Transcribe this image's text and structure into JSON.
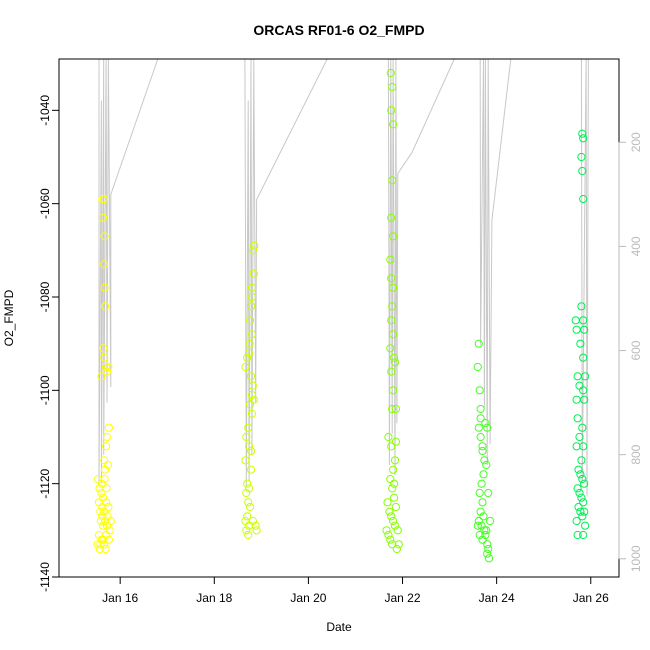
{
  "chart_data": {
    "type": "scatter",
    "title": "ORCAS RF01-6 O2_FMPD",
    "xlabel": "Date",
    "ylabel": "O2_FMPD",
    "x_unit": "day of January",
    "xlim": [
      14.7,
      26.6
    ],
    "ylim": [
      -1140,
      -1029
    ],
    "x_ticks": [
      16,
      18,
      20,
      22,
      24,
      26
    ],
    "x_tick_labels": [
      "Jan 16",
      "Jan 18",
      "Jan 20",
      "Jan 22",
      "Jan 24",
      "Jan 26"
    ],
    "y_ticks": [
      -1140,
      -1120,
      -1100,
      -1080,
      -1060,
      -1040
    ],
    "y_tick_labels": [
      "-1140",
      "-1120",
      "-1100",
      "-1080",
      "-1060",
      "-1040"
    ],
    "secondary_axis": {
      "side": "right",
      "color": "#bbbbbb",
      "ticks": [
        200,
        400,
        600,
        800,
        1000
      ],
      "tick_labels": [
        "200",
        "400",
        "600",
        "800",
        "1000"
      ],
      "lim": [
        40,
        1035
      ]
    },
    "grid": false,
    "legend": "none",
    "series": [
      {
        "color": "#ffff00",
        "x_range": [
          15.45,
          15.85
        ],
        "points": [
          [
            15.62,
            -1059
          ],
          [
            15.66,
            -1059
          ],
          [
            15.64,
            -1063
          ],
          [
            15.67,
            -1067
          ],
          [
            15.66,
            -1073
          ],
          [
            15.67,
            -1078
          ],
          [
            15.68,
            -1082
          ],
          [
            15.64,
            -1091
          ],
          [
            15.66,
            -1093
          ],
          [
            15.7,
            -1095
          ],
          [
            15.72,
            -1096
          ],
          [
            15.6,
            -1097
          ],
          [
            15.75,
            -1095
          ],
          [
            15.76,
            -1108
          ],
          [
            15.72,
            -1110
          ],
          [
            15.7,
            -1112
          ],
          [
            15.66,
            -1115
          ],
          [
            15.68,
            -1117
          ],
          [
            15.74,
            -1116
          ],
          [
            15.53,
            -1119
          ],
          [
            15.56,
            -1121
          ],
          [
            15.6,
            -1122
          ],
          [
            15.64,
            -1123
          ],
          [
            15.7,
            -1124
          ],
          [
            15.75,
            -1125
          ],
          [
            15.58,
            -1126
          ],
          [
            15.62,
            -1127
          ],
          [
            15.68,
            -1128
          ],
          [
            15.72,
            -1129
          ],
          [
            15.78,
            -1130
          ],
          [
            15.55,
            -1131
          ],
          [
            15.6,
            -1132
          ],
          [
            15.66,
            -1133
          ],
          [
            15.52,
            -1133
          ],
          [
            15.57,
            -1134
          ],
          [
            15.63,
            -1132
          ],
          [
            15.7,
            -1131
          ],
          [
            15.76,
            -1132
          ],
          [
            15.59,
            -1128
          ],
          [
            15.65,
            -1126
          ],
          [
            15.73,
            -1127
          ],
          [
            15.61,
            -1120
          ],
          [
            15.67,
            -1119
          ],
          [
            15.71,
            -1121
          ],
          [
            15.55,
            -1124
          ],
          [
            15.64,
            -1129
          ],
          [
            15.8,
            -1128
          ],
          [
            15.58,
            -1133
          ],
          [
            15.69,
            -1134
          ],
          [
            15.62,
            -1125
          ]
        ]
      },
      {
        "color": "#ccff00",
        "x_range": [
          18.6,
          18.95
        ],
        "points": [
          [
            18.85,
            -1069
          ],
          [
            18.82,
            -1070
          ],
          [
            18.84,
            -1075
          ],
          [
            18.8,
            -1078
          ],
          [
            18.78,
            -1082
          ],
          [
            18.76,
            -1085
          ],
          [
            18.8,
            -1088
          ],
          [
            18.75,
            -1090
          ],
          [
            18.7,
            -1093
          ],
          [
            18.66,
            -1095
          ],
          [
            18.78,
            -1097
          ],
          [
            18.82,
            -1099
          ],
          [
            18.8,
            -1101
          ],
          [
            18.76,
            -1103
          ],
          [
            18.8,
            -1105
          ],
          [
            18.72,
            -1108
          ],
          [
            18.68,
            -1110
          ],
          [
            18.74,
            -1112
          ],
          [
            18.66,
            -1115
          ],
          [
            18.78,
            -1117
          ],
          [
            18.7,
            -1120
          ],
          [
            18.74,
            -1121
          ],
          [
            18.68,
            -1122
          ],
          [
            18.72,
            -1124
          ],
          [
            18.76,
            -1125
          ],
          [
            18.7,
            -1127
          ],
          [
            18.66,
            -1128
          ],
          [
            18.74,
            -1129
          ],
          [
            18.68,
            -1130
          ],
          [
            18.72,
            -1131
          ],
          [
            18.88,
            -1129
          ],
          [
            18.9,
            -1130
          ],
          [
            18.82,
            -1128
          ],
          [
            18.78,
            -1113
          ],
          [
            18.84,
            -1102
          ],
          [
            18.74,
            -1092
          ],
          [
            18.8,
            -1080
          ]
        ]
      },
      {
        "color": "#88ff00",
        "x_range": [
          21.55,
          22.0
        ],
        "points": [
          [
            21.75,
            -1032
          ],
          [
            21.78,
            -1035
          ],
          [
            21.76,
            -1040
          ],
          [
            21.8,
            -1043
          ],
          [
            21.78,
            -1055
          ],
          [
            21.76,
            -1063
          ],
          [
            21.8,
            -1067
          ],
          [
            21.74,
            -1072
          ],
          [
            21.76,
            -1076
          ],
          [
            21.8,
            -1078
          ],
          [
            21.78,
            -1082
          ],
          [
            21.76,
            -1085
          ],
          [
            21.8,
            -1088
          ],
          [
            21.74,
            -1091
          ],
          [
            21.82,
            -1093
          ],
          [
            21.76,
            -1096
          ],
          [
            21.8,
            -1100
          ],
          [
            21.78,
            -1104
          ],
          [
            21.7,
            -1110
          ],
          [
            21.76,
            -1112
          ],
          [
            21.86,
            -1111
          ],
          [
            21.84,
            -1115
          ],
          [
            21.8,
            -1117
          ],
          [
            21.74,
            -1119
          ],
          [
            21.78,
            -1121
          ],
          [
            21.82,
            -1123
          ],
          [
            21.68,
            -1124
          ],
          [
            21.72,
            -1126
          ],
          [
            21.76,
            -1127
          ],
          [
            21.8,
            -1128
          ],
          [
            21.84,
            -1129
          ],
          [
            21.66,
            -1130
          ],
          [
            21.7,
            -1131
          ],
          [
            21.74,
            -1132
          ],
          [
            21.78,
            -1133
          ],
          [
            21.9,
            -1130
          ],
          [
            21.92,
            -1133
          ],
          [
            21.88,
            -1134
          ],
          [
            21.86,
            -1125
          ],
          [
            21.82,
            -1120
          ],
          [
            21.86,
            -1104
          ],
          [
            21.84,
            -1094
          ]
        ]
      },
      {
        "color": "#44ff22",
        "x_range": [
          23.55,
          24.0
        ],
        "points": [
          [
            23.62,
            -1090
          ],
          [
            23.6,
            -1095
          ],
          [
            23.64,
            -1100
          ],
          [
            23.66,
            -1104
          ],
          [
            23.62,
            -1108
          ],
          [
            23.66,
            -1110
          ],
          [
            23.7,
            -1113
          ],
          [
            23.74,
            -1115
          ],
          [
            23.76,
            -1107
          ],
          [
            23.8,
            -1108
          ],
          [
            23.72,
            -1118
          ],
          [
            23.68,
            -1120
          ],
          [
            23.64,
            -1122
          ],
          [
            23.7,
            -1124
          ],
          [
            23.66,
            -1126
          ],
          [
            23.72,
            -1127
          ],
          [
            23.62,
            -1128
          ],
          [
            23.68,
            -1129
          ],
          [
            23.74,
            -1130
          ],
          [
            23.78,
            -1130
          ],
          [
            23.64,
            -1131
          ],
          [
            23.7,
            -1132
          ],
          [
            23.76,
            -1131
          ],
          [
            23.8,
            -1133
          ],
          [
            23.82,
            -1134
          ],
          [
            23.84,
            -1136
          ],
          [
            23.8,
            -1135
          ],
          [
            23.6,
            -1129
          ],
          [
            23.86,
            -1128
          ],
          [
            23.82,
            -1122
          ],
          [
            23.78,
            -1116
          ],
          [
            23.7,
            -1112
          ],
          [
            23.66,
            -1106
          ]
        ]
      },
      {
        "color": "#00ee55",
        "x_range": [
          25.6,
          26.05
        ],
        "points": [
          [
            25.82,
            -1045
          ],
          [
            25.84,
            -1046
          ],
          [
            25.8,
            -1050
          ],
          [
            25.82,
            -1053
          ],
          [
            25.84,
            -1059
          ],
          [
            25.8,
            -1082
          ],
          [
            25.84,
            -1085
          ],
          [
            25.68,
            -1085
          ],
          [
            25.7,
            -1087
          ],
          [
            25.86,
            -1087
          ],
          [
            25.78,
            -1090
          ],
          [
            25.84,
            -1093
          ],
          [
            25.72,
            -1097
          ],
          [
            25.88,
            -1097
          ],
          [
            25.76,
            -1099
          ],
          [
            25.84,
            -1100
          ],
          [
            25.7,
            -1102
          ],
          [
            25.86,
            -1102
          ],
          [
            25.72,
            -1106
          ],
          [
            25.82,
            -1108
          ],
          [
            25.76,
            -1110
          ],
          [
            25.7,
            -1112
          ],
          [
            25.84,
            -1112
          ],
          [
            25.8,
            -1115
          ],
          [
            25.74,
            -1117
          ],
          [
            25.78,
            -1118
          ],
          [
            25.82,
            -1119
          ],
          [
            25.86,
            -1120
          ],
          [
            25.72,
            -1121
          ],
          [
            25.76,
            -1122
          ],
          [
            25.8,
            -1123
          ],
          [
            25.84,
            -1124
          ],
          [
            25.74,
            -1125
          ],
          [
            25.78,
            -1126
          ],
          [
            25.82,
            -1127
          ],
          [
            25.86,
            -1126
          ],
          [
            25.88,
            -1129
          ],
          [
            25.7,
            -1128
          ],
          [
            25.72,
            -1131
          ],
          [
            25.84,
            -1131
          ]
        ]
      }
    ],
    "trace_series": {
      "axis": "secondary",
      "color": "#c8c8c8",
      "points": [
        [
          15.55,
          40
        ],
        [
          15.55,
          860
        ],
        [
          15.6,
          120
        ],
        [
          15.6,
          855
        ],
        [
          15.65,
          40
        ],
        [
          15.65,
          800
        ],
        [
          15.7,
          40
        ],
        [
          15.72,
          700
        ],
        [
          15.75,
          40
        ],
        [
          15.8,
          670
        ],
        [
          15.8,
          300
        ],
        [
          16.8,
          40
        ],
        [
          18.65,
          40
        ],
        [
          18.68,
          860
        ],
        [
          18.72,
          120
        ],
        [
          18.74,
          850
        ],
        [
          18.78,
          40
        ],
        [
          18.8,
          800
        ],
        [
          18.84,
          40
        ],
        [
          18.88,
          700
        ],
        [
          18.9,
          310
        ],
        [
          20.4,
          40
        ],
        [
          21.7,
          40
        ],
        [
          21.72,
          820
        ],
        [
          21.75,
          40
        ],
        [
          21.78,
          760
        ],
        [
          21.8,
          40
        ],
        [
          21.84,
          840
        ],
        [
          21.86,
          40
        ],
        [
          21.88,
          740
        ],
        [
          21.9,
          260
        ],
        [
          22.2,
          220
        ],
        [
          23.1,
          40
        ],
        [
          23.65,
          40
        ],
        [
          23.66,
          590
        ],
        [
          23.72,
          40
        ],
        [
          23.74,
          710
        ],
        [
          23.76,
          40
        ],
        [
          23.8,
          820
        ],
        [
          23.82,
          40
        ],
        [
          23.86,
          780
        ],
        [
          23.9,
          350
        ],
        [
          24.3,
          40
        ],
        [
          25.8,
          40
        ],
        [
          25.82,
          850
        ],
        [
          25.9,
          40
        ],
        [
          25.92,
          880
        ],
        [
          25.95,
          40
        ]
      ]
    }
  }
}
